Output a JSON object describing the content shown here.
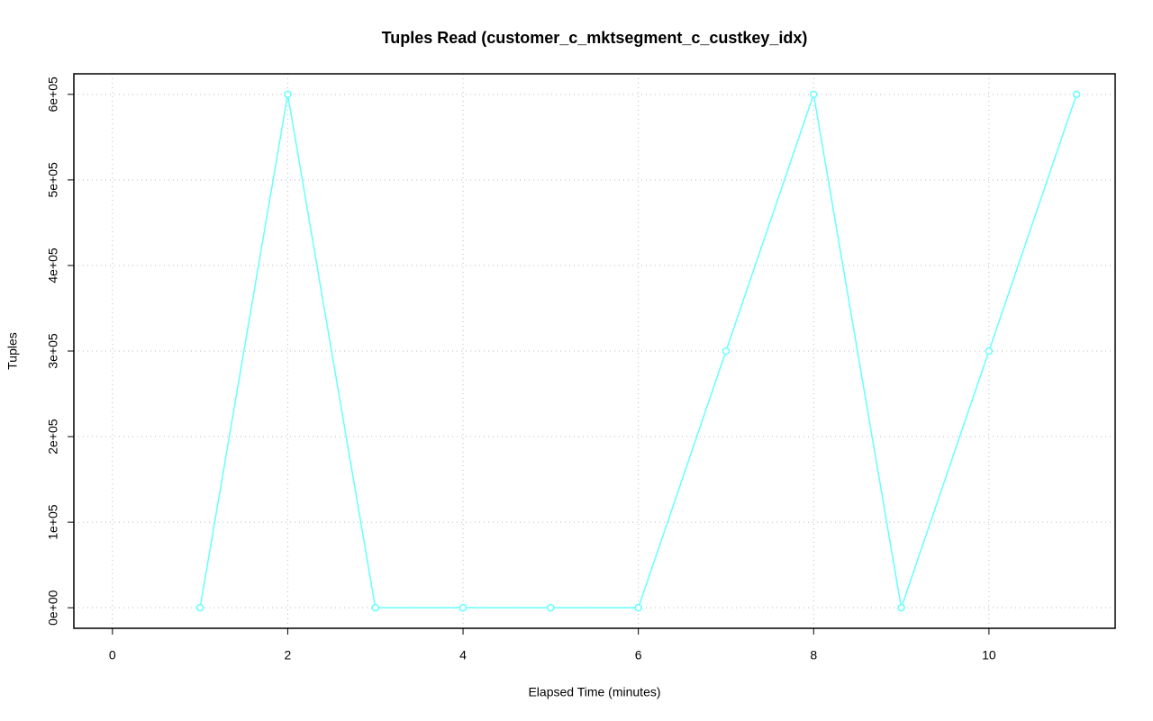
{
  "chart_data": {
    "type": "line",
    "title": "Tuples Read (customer_c_mktsegment_c_custkey_idx)",
    "x_label": "Elapsed Time (minutes)",
    "y_label": "Tuples",
    "x": [
      1,
      2,
      3,
      4,
      5,
      6,
      7,
      8,
      9,
      10,
      11
    ],
    "series": [
      {
        "color": "#66ffff",
        "values": [
          0,
          600000,
          0,
          0,
          0,
          0,
          300000,
          600000,
          0,
          300000,
          600000
        ]
      }
    ],
    "xlim": [
      -0.44,
      11.44
    ],
    "xticks": [
      0,
      2,
      4,
      6,
      8,
      10
    ],
    "ylim": [
      -24000,
      624000
    ],
    "yticks": [
      {
        "value": 0,
        "label": "0e+00"
      },
      {
        "value": 100000,
        "label": "1e+05"
      },
      {
        "value": 200000,
        "label": "2e+05"
      },
      {
        "value": 300000,
        "label": "3e+05"
      },
      {
        "value": 400000,
        "label": "4e+05"
      },
      {
        "value": 500000,
        "label": "5e+05"
      },
      {
        "value": 600000,
        "label": "6e+05"
      }
    ],
    "grid": true
  }
}
